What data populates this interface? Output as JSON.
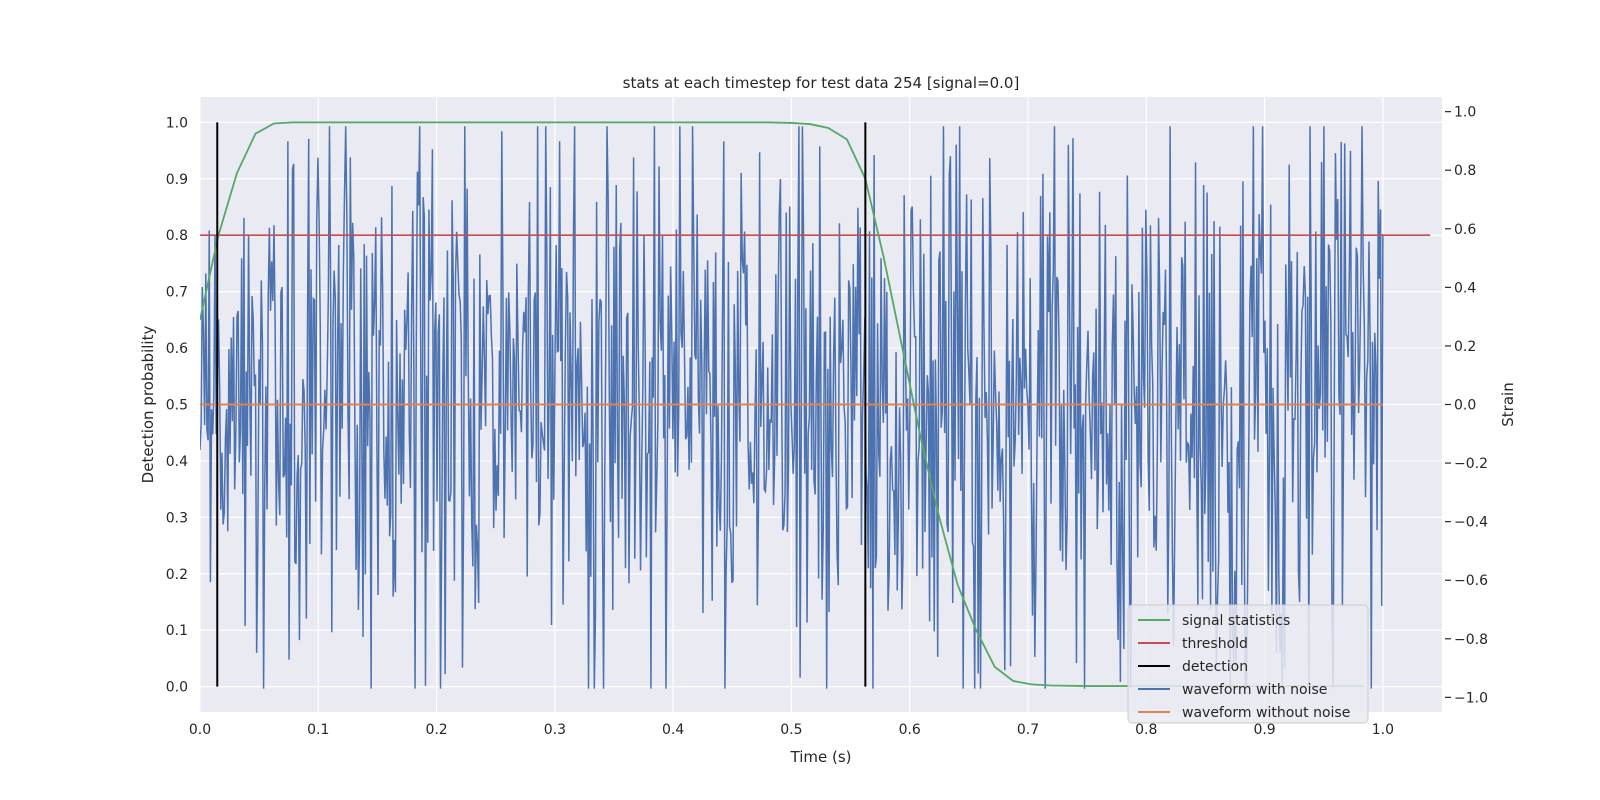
{
  "chart_data": {
    "type": "line",
    "title": "stats at each timestep for test data 254 [signal=0.0]",
    "xlabel": "Time (s)",
    "ylabel_left": "Detection probability",
    "ylabel_right": "Strain",
    "xlim": [
      0.0,
      1.05
    ],
    "ylim_left": [
      -0.045,
      1.045
    ],
    "ylim_right": [
      -1.05,
      1.05
    ],
    "grid": true,
    "legend_placement": "lower-right",
    "xticks": [
      "0.0",
      "0.1",
      "0.2",
      "0.3",
      "0.4",
      "0.5",
      "0.6",
      "0.7",
      "0.8",
      "0.9",
      "1.0"
    ],
    "yticks_left": [
      "0.0",
      "0.1",
      "0.2",
      "0.3",
      "0.4",
      "0.5",
      "0.6",
      "0.7",
      "0.8",
      "0.9",
      "1.0"
    ],
    "yticks_right": [
      "−1.0",
      "−0.8",
      "−0.6",
      "−0.4",
      "−0.2",
      "0.0",
      "0.2",
      "0.4",
      "0.6",
      "0.8",
      "1.0"
    ],
    "colors": {
      "plot_background": "#eaeaf2",
      "grid": "#ffffff",
      "signal_statistics": "#55a868",
      "threshold": "#c44e52",
      "detection": "#000000",
      "waveform_with_noise": "#4c72b0",
      "waveform_without_noise": "#dd8452"
    },
    "series": [
      {
        "name": "signal statistics",
        "axis": "left",
        "x": [
          0.0,
          0.0156,
          0.0312,
          0.0469,
          0.0625,
          0.0781,
          0.1,
          0.2,
          0.3,
          0.4,
          0.48,
          0.5,
          0.5156,
          0.5312,
          0.5469,
          0.5625,
          0.5781,
          0.5938,
          0.6094,
          0.625,
          0.6406,
          0.6562,
          0.6719,
          0.6875,
          0.7031,
          0.7188,
          0.75,
          0.8,
          0.9,
          0.9844
        ],
        "y": [
          0.65,
          0.8,
          0.91,
          0.98,
          0.998,
          1.0,
          1.0,
          1.0,
          1.0,
          1.0,
          1.0,
          0.999,
          0.997,
          0.99,
          0.97,
          0.9,
          0.76,
          0.6,
          0.44,
          0.3,
          0.18,
          0.1,
          0.035,
          0.01,
          0.004,
          0.002,
          0.001,
          0.001,
          0.001,
          0.001
        ]
      },
      {
        "name": "threshold",
        "axis": "left",
        "x": [
          0.0,
          1.04
        ],
        "y": [
          0.8,
          0.8
        ]
      },
      {
        "name": "detection",
        "axis": "left",
        "detections_x": [
          0.0146,
          0.5625
        ],
        "y_range": [
          0.0,
          1.0
        ]
      },
      {
        "name": "waveform with noise",
        "axis": "right",
        "x_start": 0.0,
        "x_end": 1.0,
        "n_points": 1024
      },
      {
        "name": "waveform without noise",
        "axis": "right",
        "x": [
          0.0,
          1.0
        ],
        "y": [
          0.0,
          0.0
        ]
      }
    ]
  }
}
